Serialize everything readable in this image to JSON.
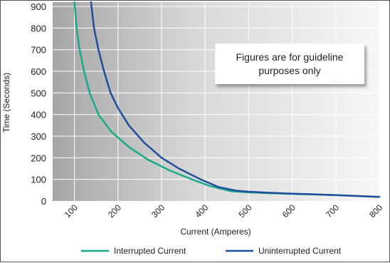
{
  "chart_data": {
    "type": "line",
    "title": "",
    "xlabel": "Current (Amperes)",
    "ylabel": "Time (Seconds)",
    "xlim": [
      50,
      800
    ],
    "ylim": [
      0,
      920
    ],
    "xticks": [
      100,
      200,
      300,
      400,
      500,
      600,
      700,
      800
    ],
    "yticks": [
      0,
      100,
      200,
      300,
      400,
      500,
      600,
      700,
      800,
      900
    ],
    "grid": true,
    "legend_position": "bottom",
    "annotation": "Figures are for guideline purposes only",
    "series": [
      {
        "name": "Interrupted Current",
        "color": "#1aaa8a",
        "points": [
          [
            100,
            920
          ],
          [
            105,
            800
          ],
          [
            112,
            700
          ],
          [
            122,
            600
          ],
          [
            135,
            500
          ],
          [
            155,
            400
          ],
          [
            185,
            320
          ],
          [
            225,
            250
          ],
          [
            270,
            190
          ],
          [
            320,
            140
          ],
          [
            370,
            100
          ],
          [
            410,
            70
          ],
          [
            460,
            45
          ],
          [
            500,
            40
          ],
          [
            550,
            36
          ],
          [
            600,
            33
          ],
          [
            650,
            30
          ],
          [
            700,
            27
          ],
          [
            750,
            23
          ],
          [
            800,
            19
          ]
        ]
      },
      {
        "name": "Uninterrupted Current",
        "color": "#1f4e9a",
        "points": [
          [
            138,
            920
          ],
          [
            145,
            800
          ],
          [
            155,
            700
          ],
          [
            168,
            600
          ],
          [
            183,
            500
          ],
          [
            200,
            430
          ],
          [
            225,
            350
          ],
          [
            260,
            270
          ],
          [
            300,
            200
          ],
          [
            340,
            150
          ],
          [
            390,
            100
          ],
          [
            430,
            65
          ],
          [
            470,
            48
          ],
          [
            500,
            43
          ],
          [
            550,
            38
          ],
          [
            600,
            34
          ],
          [
            650,
            31
          ],
          [
            700,
            27
          ],
          [
            750,
            23
          ],
          [
            800,
            19
          ]
        ]
      }
    ]
  }
}
